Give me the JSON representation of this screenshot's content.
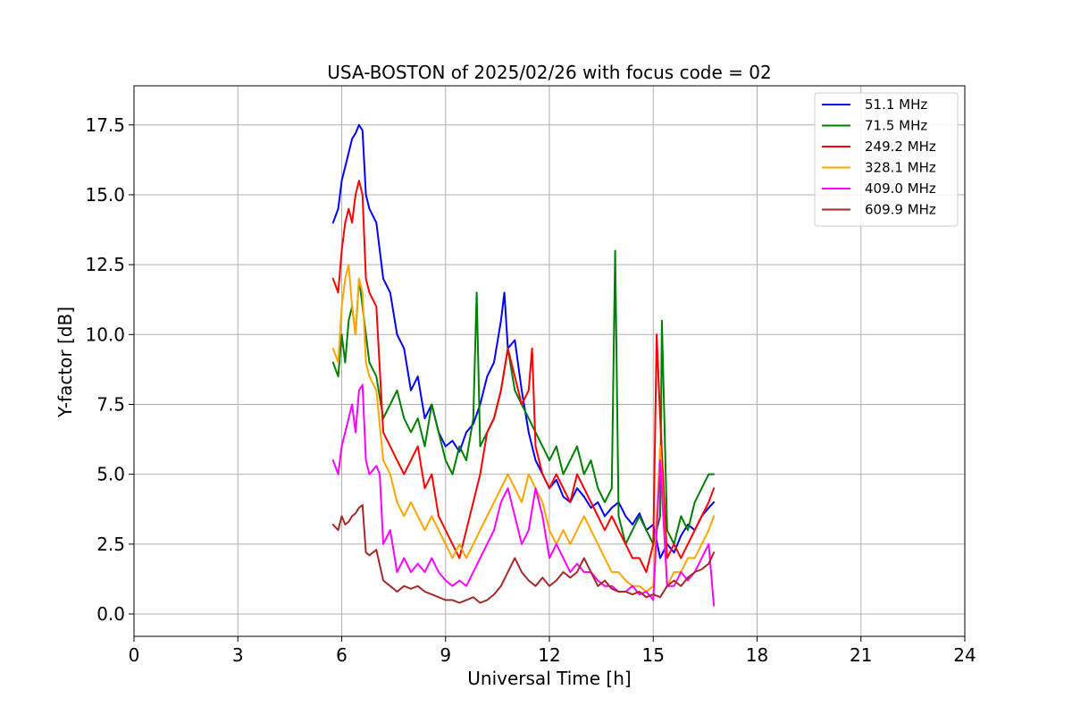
{
  "chart_data": {
    "type": "line",
    "title": "USA-BOSTON of 2025/02/26 with focus code = 02",
    "xlabel": "Universal Time [h]",
    "ylabel": "Y-factor [dB]",
    "xlim": [
      0,
      24
    ],
    "ylim": [
      -0.8,
      18.9
    ],
    "xticks": [
      0,
      3,
      6,
      9,
      12,
      15,
      18,
      21,
      24
    ],
    "xtick_labels": [
      "0",
      "3",
      "6",
      "9",
      "12",
      "15",
      "18",
      "21",
      "24"
    ],
    "yticks": [
      0,
      2.5,
      5,
      7.5,
      10,
      12.5,
      15,
      17.5
    ],
    "ytick_labels": [
      "0.0",
      "2.5",
      "5.0",
      "7.5",
      "10.0",
      "12.5",
      "15.0",
      "17.5"
    ],
    "grid": true,
    "legend_position": "top-right",
    "series": [
      {
        "name": " 51.1 MHz",
        "color": "#0000ff",
        "x": [
          5.75,
          5.9,
          6.0,
          6.1,
          6.2,
          6.3,
          6.4,
          6.5,
          6.6,
          6.7,
          6.8,
          7.0,
          7.2,
          7.4,
          7.6,
          7.8,
          8.0,
          8.2,
          8.4,
          8.6,
          8.8,
          9.0,
          9.2,
          9.4,
          9.6,
          9.8,
          10.0,
          10.2,
          10.4,
          10.6,
          10.7,
          10.8,
          11.0,
          11.2,
          11.4,
          11.6,
          11.8,
          12.0,
          12.2,
          12.4,
          12.6,
          12.8,
          13.0,
          13.2,
          13.4,
          13.6,
          13.8,
          14.0,
          14.2,
          14.4,
          14.6,
          14.8,
          15.0,
          15.2,
          15.4,
          15.6,
          15.8,
          16.0,
          16.2,
          16.4,
          16.6,
          16.75
        ],
        "y": [
          14.0,
          14.5,
          15.5,
          16.0,
          16.5,
          17.0,
          17.2,
          17.5,
          17.3,
          15.0,
          14.5,
          14.0,
          12.0,
          11.5,
          10.0,
          9.5,
          8.0,
          8.5,
          7.0,
          7.5,
          6.5,
          6.0,
          6.2,
          5.8,
          6.5,
          6.8,
          7.5,
          8.5,
          9.0,
          10.5,
          11.5,
          9.5,
          9.8,
          8.0,
          6.5,
          5.5,
          5.0,
          4.5,
          4.8,
          4.2,
          4.0,
          4.5,
          4.2,
          3.8,
          4.0,
          3.5,
          3.8,
          4.0,
          3.5,
          3.2,
          3.6,
          3.0,
          3.2,
          2.0,
          2.5,
          2.2,
          2.8,
          3.2,
          3.0,
          3.5,
          3.8,
          4.0
        ]
      },
      {
        "name": " 71.5 MHz",
        "color": "#008000",
        "x": [
          5.75,
          5.9,
          6.0,
          6.1,
          6.2,
          6.3,
          6.4,
          6.5,
          6.6,
          6.7,
          6.8,
          7.0,
          7.2,
          7.4,
          7.6,
          7.8,
          8.0,
          8.2,
          8.4,
          8.6,
          8.8,
          9.0,
          9.2,
          9.4,
          9.6,
          9.8,
          9.9,
          10.0,
          10.2,
          10.4,
          10.6,
          10.8,
          11.0,
          11.2,
          11.4,
          11.6,
          11.8,
          12.0,
          12.2,
          12.4,
          12.6,
          12.8,
          13.0,
          13.2,
          13.4,
          13.6,
          13.8,
          13.9,
          14.0,
          14.2,
          14.4,
          14.6,
          14.8,
          15.0,
          15.2,
          15.25,
          15.4,
          15.6,
          15.8,
          16.0,
          16.2,
          16.4,
          16.6,
          16.75
        ],
        "y": [
          9.0,
          8.5,
          10.0,
          9.0,
          10.5,
          11.0,
          10.0,
          12.0,
          11.0,
          10.0,
          9.0,
          8.5,
          7.0,
          7.5,
          8.0,
          7.0,
          6.5,
          7.0,
          6.0,
          7.5,
          6.5,
          5.5,
          5.0,
          6.0,
          5.5,
          7.0,
          11.5,
          6.0,
          6.5,
          7.0,
          8.0,
          9.5,
          8.0,
          7.5,
          7.0,
          6.5,
          6.0,
          5.5,
          6.0,
          5.0,
          5.5,
          6.0,
          5.0,
          5.5,
          4.5,
          4.0,
          4.5,
          13.0,
          3.5,
          2.5,
          3.0,
          3.5,
          3.0,
          2.5,
          3.5,
          10.5,
          3.0,
          2.5,
          3.5,
          3.0,
          4.0,
          4.5,
          5.0,
          5.0
        ]
      },
      {
        "name": " 249.2 MHz",
        "color": "#ff0000",
        "x": [
          5.75,
          5.9,
          6.0,
          6.1,
          6.2,
          6.3,
          6.4,
          6.5,
          6.6,
          6.7,
          6.8,
          7.0,
          7.2,
          7.4,
          7.6,
          7.8,
          8.0,
          8.2,
          8.4,
          8.6,
          8.8,
          9.0,
          9.2,
          9.4,
          9.6,
          9.8,
          10.0,
          10.2,
          10.4,
          10.6,
          10.8,
          11.0,
          11.2,
          11.4,
          11.5,
          11.6,
          11.8,
          12.0,
          12.2,
          12.4,
          12.6,
          12.8,
          13.0,
          13.2,
          13.4,
          13.6,
          13.8,
          14.0,
          14.2,
          14.4,
          14.6,
          14.8,
          15.0,
          15.1,
          15.2,
          15.4,
          15.6,
          15.8,
          16.0,
          16.2,
          16.4,
          16.6,
          16.75
        ],
        "y": [
          12.0,
          11.5,
          13.0,
          14.0,
          14.5,
          14.0,
          15.0,
          15.5,
          15.0,
          12.0,
          11.5,
          11.0,
          6.5,
          6.0,
          5.5,
          5.0,
          5.5,
          6.0,
          4.5,
          5.0,
          3.5,
          3.0,
          2.5,
          2.0,
          3.0,
          4.0,
          5.0,
          6.5,
          7.0,
          8.0,
          9.5,
          8.5,
          7.5,
          8.0,
          9.5,
          6.0,
          5.0,
          4.5,
          5.0,
          4.5,
          4.0,
          5.0,
          4.5,
          4.0,
          3.5,
          3.0,
          3.5,
          3.0,
          2.5,
          2.0,
          2.0,
          1.5,
          2.5,
          10.0,
          7.0,
          2.0,
          2.5,
          2.0,
          2.5,
          3.0,
          3.5,
          4.0,
          4.5
        ]
      },
      {
        "name": " 328.1 MHz",
        "color": "#ffa500",
        "x": [
          5.75,
          5.9,
          6.0,
          6.1,
          6.2,
          6.3,
          6.4,
          6.5,
          6.6,
          6.7,
          6.8,
          7.0,
          7.2,
          7.4,
          7.6,
          7.8,
          8.0,
          8.2,
          8.4,
          8.6,
          8.8,
          9.0,
          9.2,
          9.4,
          9.6,
          9.8,
          10.0,
          10.2,
          10.4,
          10.6,
          10.8,
          11.0,
          11.2,
          11.4,
          11.6,
          11.8,
          12.0,
          12.2,
          12.4,
          12.6,
          12.8,
          13.0,
          13.2,
          13.4,
          13.6,
          13.8,
          14.0,
          14.2,
          14.4,
          14.6,
          14.8,
          15.0,
          15.2,
          15.4,
          15.6,
          15.8,
          16.0,
          16.2,
          16.4,
          16.6,
          16.75
        ],
        "y": [
          9.5,
          9.0,
          11.0,
          12.0,
          12.5,
          11.0,
          10.0,
          12.0,
          11.5,
          9.0,
          8.5,
          8.0,
          5.5,
          5.0,
          4.0,
          3.5,
          4.0,
          3.5,
          3.0,
          3.5,
          3.0,
          2.5,
          2.0,
          2.5,
          2.0,
          2.5,
          3.0,
          3.5,
          4.0,
          4.5,
          5.0,
          4.5,
          4.0,
          5.0,
          4.5,
          4.0,
          3.0,
          2.5,
          3.0,
          2.5,
          3.0,
          3.5,
          3.0,
          2.5,
          2.0,
          1.5,
          1.5,
          1.2,
          1.0,
          1.0,
          0.8,
          1.0,
          6.0,
          1.0,
          1.5,
          1.5,
          2.0,
          2.0,
          2.5,
          3.0,
          3.5
        ]
      },
      {
        "name": " 409.0 MHz",
        "color": "#ff00ff",
        "x": [
          5.75,
          5.9,
          6.0,
          6.1,
          6.2,
          6.3,
          6.4,
          6.5,
          6.6,
          6.7,
          6.8,
          7.0,
          7.1,
          7.2,
          7.4,
          7.6,
          7.8,
          8.0,
          8.2,
          8.4,
          8.6,
          8.8,
          9.0,
          9.2,
          9.4,
          9.6,
          9.8,
          10.0,
          10.2,
          10.4,
          10.6,
          10.8,
          11.0,
          11.2,
          11.4,
          11.6,
          11.8,
          12.0,
          12.2,
          12.4,
          12.6,
          12.8,
          13.0,
          13.2,
          13.4,
          13.6,
          13.8,
          14.0,
          14.2,
          14.4,
          14.6,
          14.8,
          15.0,
          15.2,
          15.4,
          15.6,
          15.8,
          16.0,
          16.2,
          16.4,
          16.6,
          16.75
        ],
        "y": [
          5.5,
          5.0,
          6.0,
          6.5,
          7.0,
          7.5,
          6.5,
          8.0,
          8.2,
          5.5,
          5.0,
          5.3,
          5.0,
          2.5,
          3.0,
          1.5,
          2.0,
          1.5,
          1.8,
          1.5,
          2.0,
          1.5,
          1.2,
          1.0,
          1.2,
          1.0,
          1.5,
          2.0,
          2.5,
          3.0,
          4.0,
          4.5,
          3.5,
          2.5,
          3.0,
          4.5,
          3.5,
          2.0,
          2.5,
          2.0,
          1.5,
          1.8,
          1.5,
          1.5,
          1.2,
          1.0,
          1.0,
          0.8,
          0.8,
          1.0,
          0.7,
          0.8,
          0.5,
          5.5,
          1.0,
          1.0,
          1.5,
          1.2,
          1.5,
          2.0,
          2.5,
          0.3
        ]
      },
      {
        "name": " 609.9 MHz",
        "color": "#a52a2a",
        "x": [
          5.75,
          5.9,
          6.0,
          6.1,
          6.2,
          6.3,
          6.4,
          6.5,
          6.6,
          6.7,
          6.8,
          7.0,
          7.2,
          7.4,
          7.6,
          7.8,
          8.0,
          8.2,
          8.4,
          8.6,
          8.8,
          9.0,
          9.2,
          9.4,
          9.6,
          9.8,
          10.0,
          10.2,
          10.4,
          10.6,
          10.8,
          11.0,
          11.2,
          11.4,
          11.6,
          11.8,
          12.0,
          12.2,
          12.4,
          12.6,
          12.8,
          13.0,
          13.2,
          13.4,
          13.6,
          13.8,
          14.0,
          14.2,
          14.4,
          14.6,
          14.8,
          15.0,
          15.2,
          15.4,
          15.6,
          15.8,
          16.0,
          16.2,
          16.4,
          16.6,
          16.75
        ],
        "y": [
          3.2,
          3.0,
          3.5,
          3.2,
          3.3,
          3.5,
          3.6,
          3.8,
          3.9,
          2.2,
          2.1,
          2.3,
          1.2,
          1.0,
          0.8,
          1.0,
          0.9,
          1.0,
          0.8,
          0.7,
          0.6,
          0.5,
          0.5,
          0.4,
          0.5,
          0.6,
          0.4,
          0.5,
          0.7,
          1.0,
          1.5,
          2.0,
          1.5,
          1.2,
          1.0,
          1.3,
          1.0,
          1.2,
          1.5,
          1.3,
          1.5,
          2.0,
          1.5,
          1.0,
          1.2,
          0.9,
          0.8,
          0.8,
          0.7,
          0.8,
          0.6,
          0.7,
          0.6,
          1.0,
          1.2,
          1.0,
          1.3,
          1.5,
          1.6,
          1.8,
          2.2
        ]
      }
    ]
  }
}
